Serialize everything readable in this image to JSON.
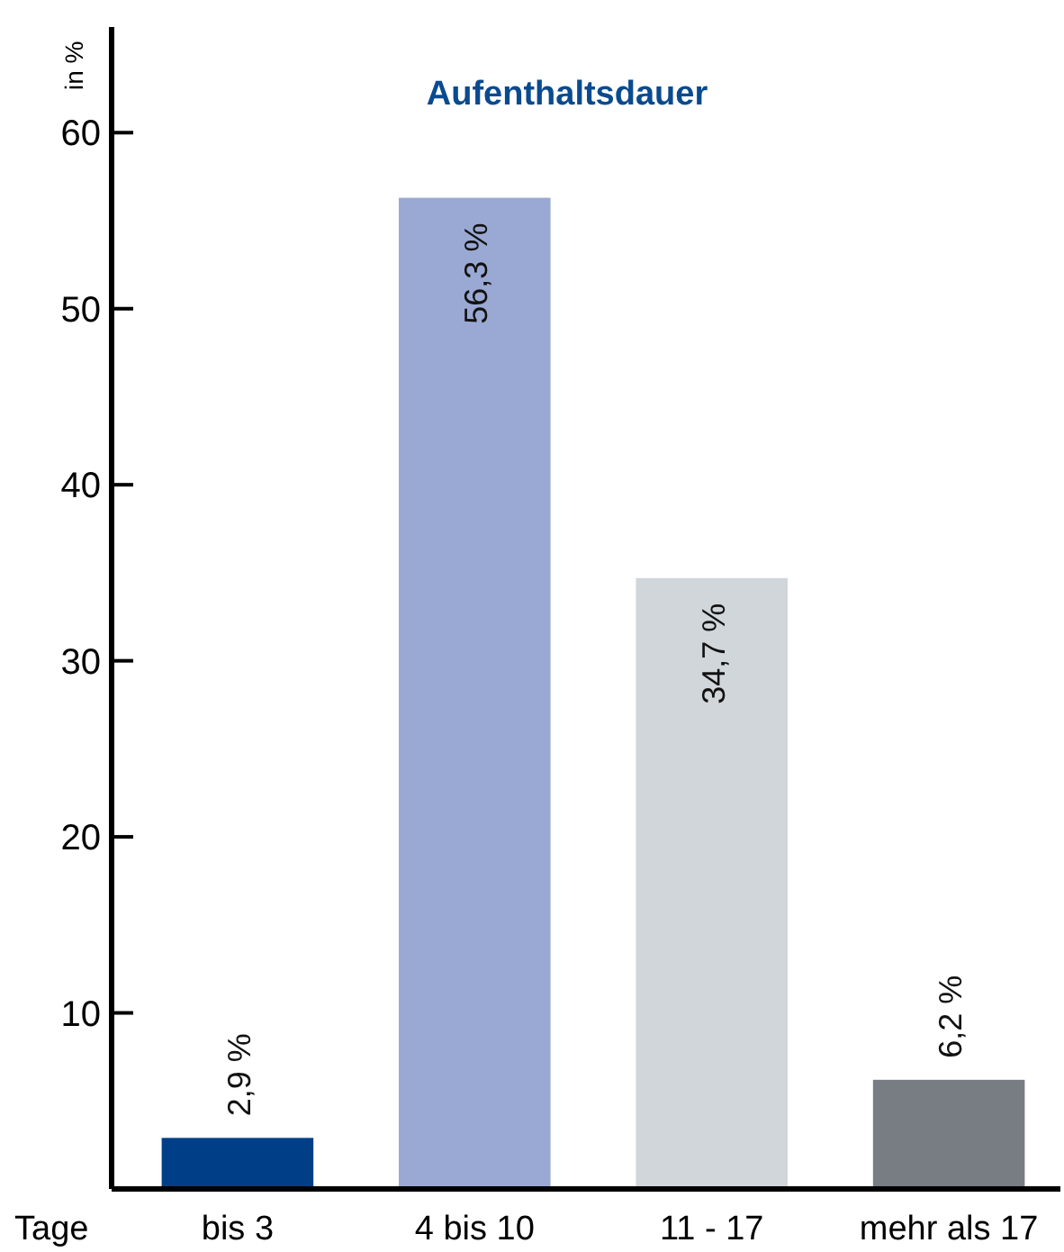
{
  "chart_data": {
    "type": "bar",
    "title": "Aufenthaltsdauer",
    "ylabel": "in %",
    "xlabel": "Tage",
    "categories": [
      "bis 3",
      "4 bis 10",
      "11 - 17",
      "mehr als 17"
    ],
    "values": [
      2.9,
      56.3,
      34.7,
      6.2
    ],
    "colors": [
      "#003f87",
      "#9aa9d3",
      "#d1d6db",
      "#787d84"
    ],
    "value_labels": [
      "2,9 %",
      "56,3 %",
      "34,7 %",
      "6,2 %"
    ],
    "ylim": [
      0,
      66
    ],
    "yticks": [
      10,
      20,
      30,
      40,
      50,
      60
    ]
  }
}
